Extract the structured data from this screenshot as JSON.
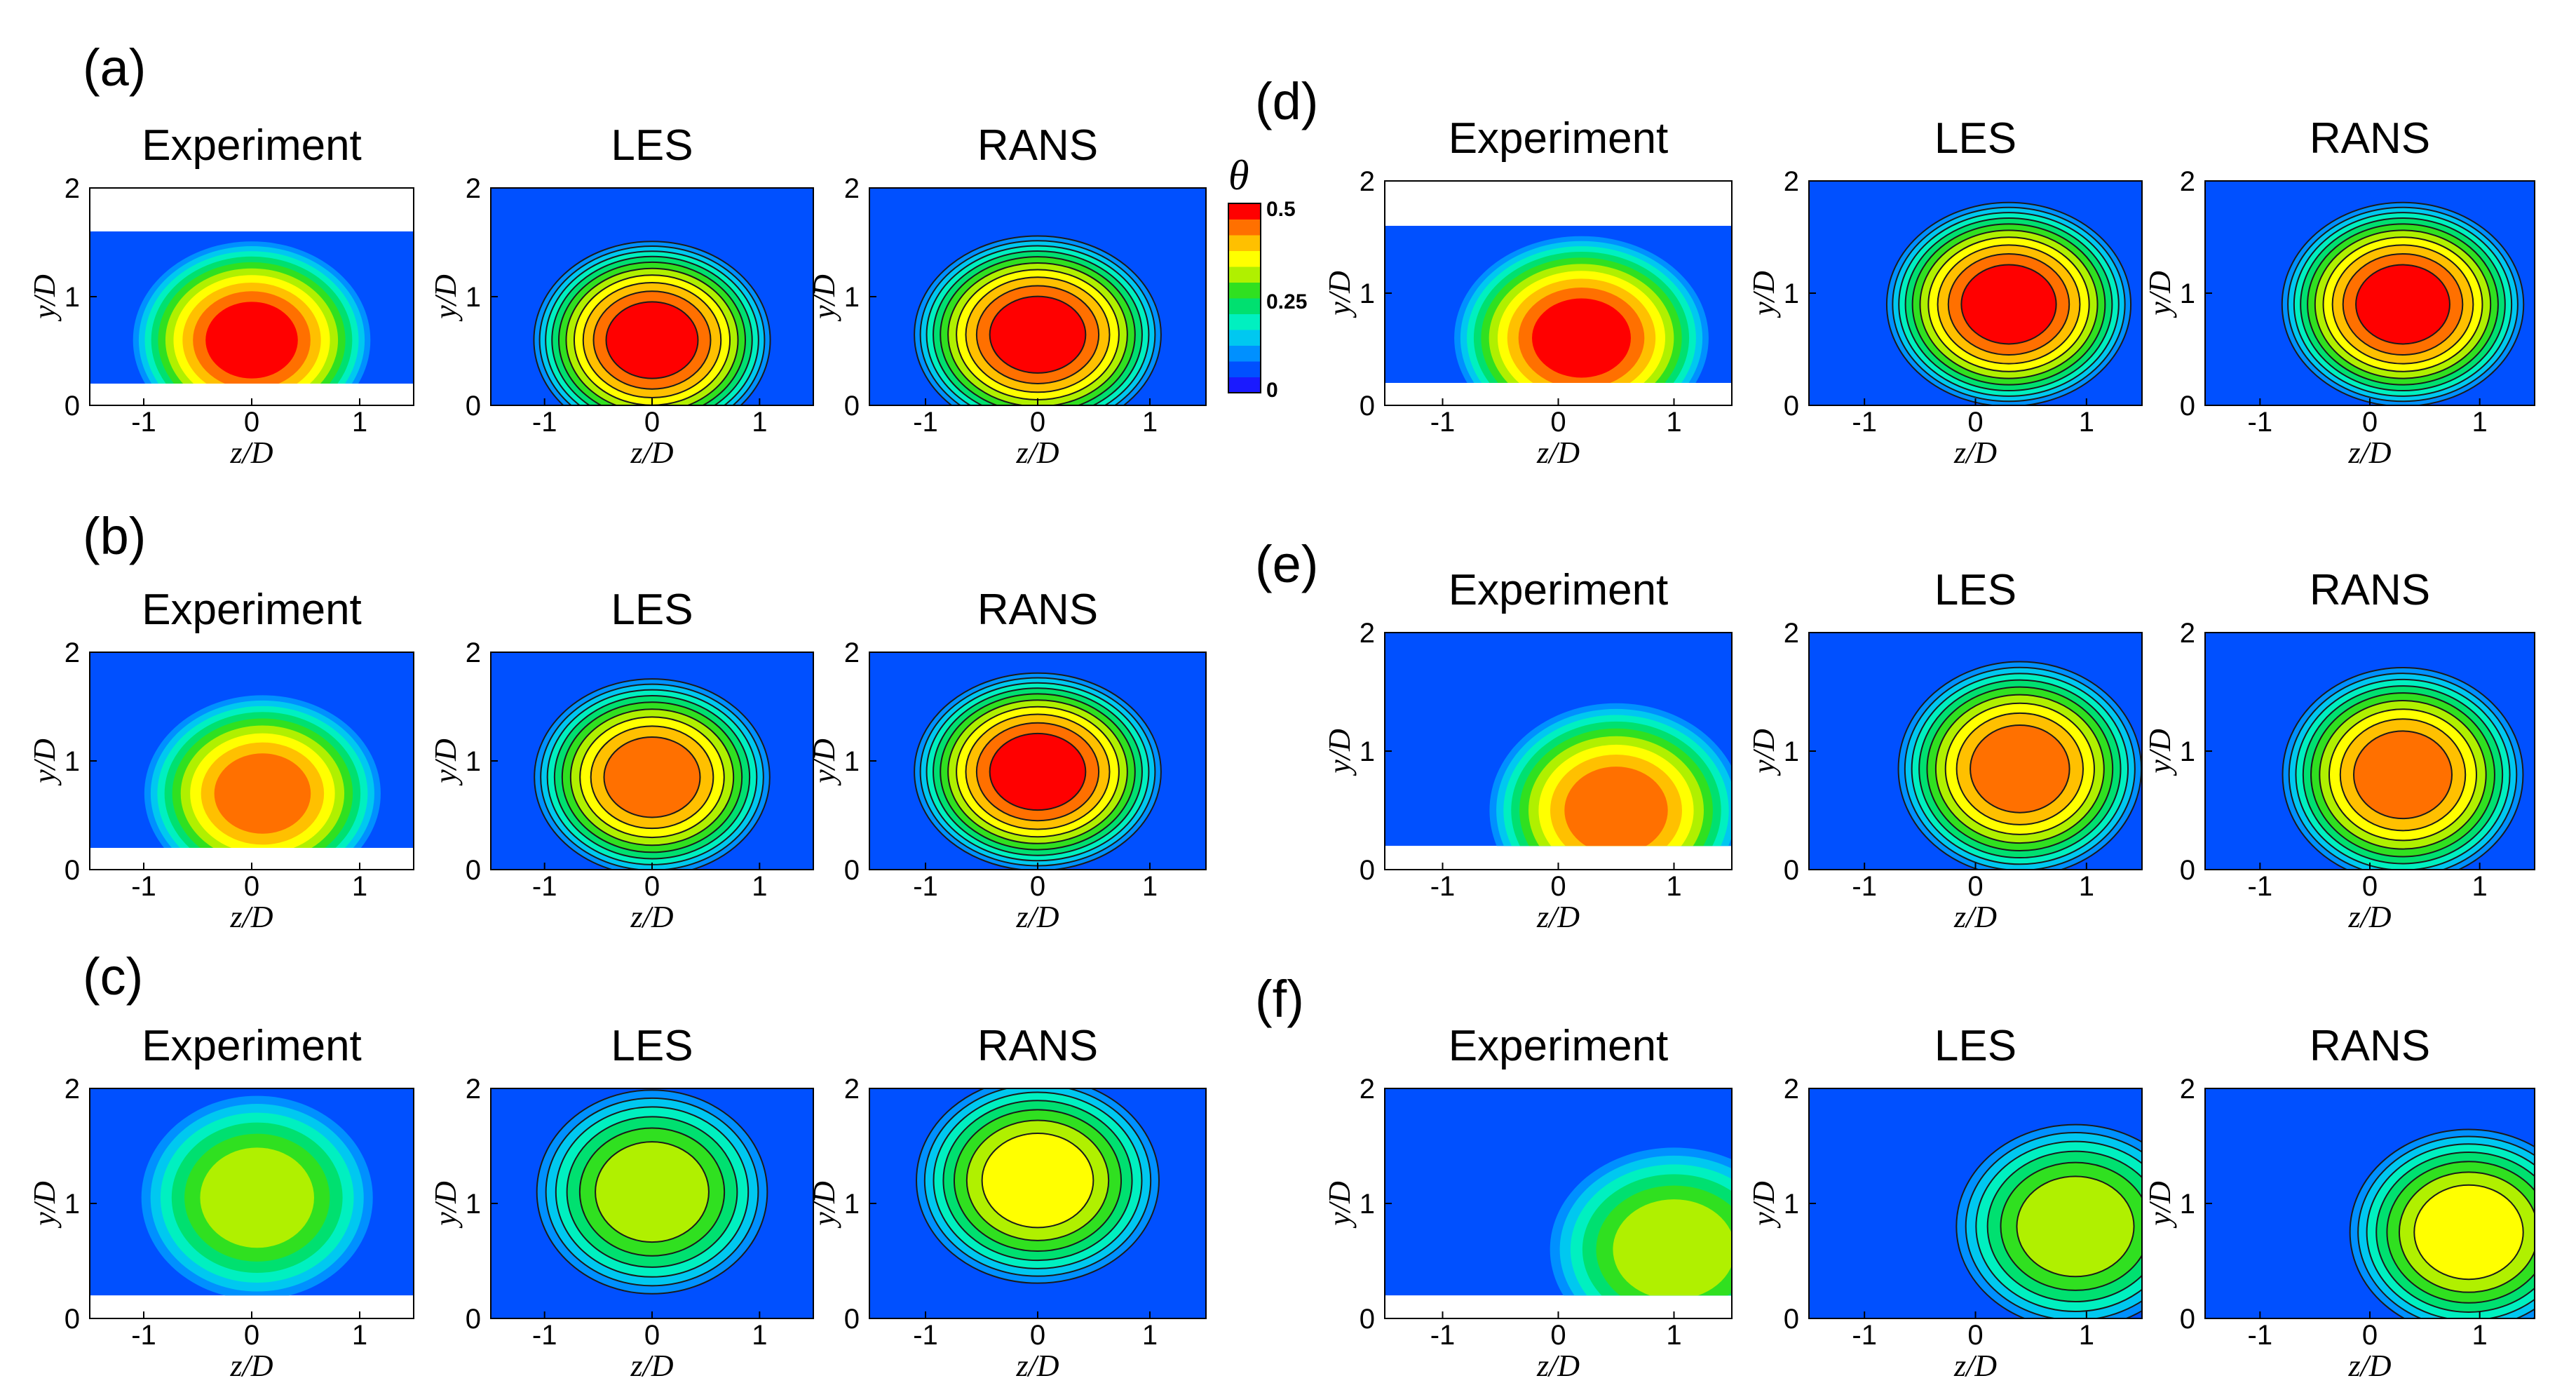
{
  "figure": {
    "panel_labels": [
      "(a)",
      "(b)",
      "(c)",
      "(d)",
      "(e)",
      "(f)"
    ],
    "methods": [
      "Experiment",
      "LES",
      "RANS"
    ],
    "xlabel": "z/D",
    "ylabel": "y/D",
    "x_ticks": [
      "-1",
      "0",
      "1"
    ],
    "y_ticks": [
      "0",
      "1",
      "2"
    ]
  },
  "colorbar": {
    "title": "θ",
    "tick_labels": [
      "0.5",
      "0.25",
      "0"
    ],
    "range": [
      0,
      0.5
    ],
    "colors": [
      "#1a1aff",
      "#0050ff",
      "#0090ff",
      "#00c8f0",
      "#00f0c0",
      "#00e070",
      "#30e020",
      "#b0f000",
      "#ffff00",
      "#ffc000",
      "#ff7000",
      "#ff0000"
    ]
  },
  "chart_data": [
    {
      "type": "heatmap",
      "panel": "(a)",
      "method": "Experiment",
      "xlim": [
        -1.5,
        1.5
      ],
      "ylim": [
        0,
        2
      ],
      "data_ymin": 0.2,
      "data_ymax": 1.6,
      "peak_theta": 0.5,
      "peak_z": 0.0,
      "peak_y": 0.6
    },
    {
      "type": "heatmap",
      "panel": "(a)",
      "method": "LES",
      "xlim": [
        -1.5,
        1.5
      ],
      "ylim": [
        0,
        2
      ],
      "data_ymin": 0.0,
      "data_ymax": 2.0,
      "peak_theta": 0.5,
      "peak_z": 0.0,
      "peak_y": 0.6
    },
    {
      "type": "heatmap",
      "panel": "(a)",
      "method": "RANS",
      "xlim": [
        -1.5,
        1.5
      ],
      "ylim": [
        0,
        2
      ],
      "data_ymin": 0.0,
      "data_ymax": 2.0,
      "peak_theta": 0.5,
      "peak_z": 0.0,
      "peak_y": 0.65
    },
    {
      "type": "heatmap",
      "panel": "(b)",
      "method": "Experiment",
      "xlim": [
        -1.5,
        1.5
      ],
      "ylim": [
        0,
        2
      ],
      "data_ymin": 0.2,
      "data_ymax": 2.0,
      "peak_theta": 0.45,
      "peak_z": 0.1,
      "peak_y": 0.7
    },
    {
      "type": "heatmap",
      "panel": "(b)",
      "method": "LES",
      "xlim": [
        -1.5,
        1.5
      ],
      "ylim": [
        0,
        2
      ],
      "data_ymin": 0.0,
      "data_ymax": 2.0,
      "peak_theta": 0.45,
      "peak_z": 0.0,
      "peak_y": 0.85
    },
    {
      "type": "heatmap",
      "panel": "(b)",
      "method": "RANS",
      "xlim": [
        -1.5,
        1.5
      ],
      "ylim": [
        0,
        2
      ],
      "data_ymin": 0.0,
      "data_ymax": 2.0,
      "peak_theta": 0.48,
      "peak_z": 0.0,
      "peak_y": 0.9
    },
    {
      "type": "heatmap",
      "panel": "(c)",
      "method": "Experiment",
      "xlim": [
        -1.5,
        1.5
      ],
      "ylim": [
        0,
        2
      ],
      "data_ymin": 0.2,
      "data_ymax": 2.0,
      "peak_theta": 0.33,
      "peak_z": 0.05,
      "peak_y": 1.05
    },
    {
      "type": "heatmap",
      "panel": "(c)",
      "method": "LES",
      "xlim": [
        -1.5,
        1.5
      ],
      "ylim": [
        0,
        2
      ],
      "data_ymin": 0.0,
      "data_ymax": 2.0,
      "peak_theta": 0.33,
      "peak_z": 0.0,
      "peak_y": 1.1
    },
    {
      "type": "heatmap",
      "panel": "(c)",
      "method": "RANS",
      "xlim": [
        -1.5,
        1.5
      ],
      "ylim": [
        0,
        2
      ],
      "data_ymin": 0.0,
      "data_ymax": 2.0,
      "peak_theta": 0.34,
      "peak_z": 0.0,
      "peak_y": 1.2
    },
    {
      "type": "heatmap",
      "panel": "(d)",
      "method": "Experiment",
      "xlim": [
        -1.5,
        1.5
      ],
      "ylim": [
        0,
        2
      ],
      "data_ymin": 0.2,
      "data_ymax": 1.6,
      "peak_theta": 0.5,
      "peak_z": 0.2,
      "peak_y": 0.6
    },
    {
      "type": "heatmap",
      "panel": "(d)",
      "method": "LES",
      "xlim": [
        -1.5,
        1.5
      ],
      "ylim": [
        0,
        2
      ],
      "data_ymin": 0.0,
      "data_ymax": 2.0,
      "peak_theta": 0.5,
      "peak_z": 0.3,
      "peak_y": 0.9
    },
    {
      "type": "heatmap",
      "panel": "(d)",
      "method": "RANS",
      "xlim": [
        -1.5,
        1.5
      ],
      "ylim": [
        0,
        2
      ],
      "data_ymin": 0.0,
      "data_ymax": 2.0,
      "peak_theta": 0.5,
      "peak_z": 0.3,
      "peak_y": 0.9
    },
    {
      "type": "heatmap",
      "panel": "(e)",
      "method": "Experiment",
      "xlim": [
        -1.5,
        1.5
      ],
      "ylim": [
        0,
        2
      ],
      "data_ymin": 0.2,
      "data_ymax": 2.0,
      "peak_theta": 0.42,
      "peak_z": 0.5,
      "peak_y": 0.5
    },
    {
      "type": "heatmap",
      "panel": "(e)",
      "method": "LES",
      "xlim": [
        -1.5,
        1.5
      ],
      "ylim": [
        0,
        2
      ],
      "data_ymin": 0.0,
      "data_ymax": 2.0,
      "peak_theta": 0.42,
      "peak_z": 0.4,
      "peak_y": 0.85
    },
    {
      "type": "heatmap",
      "panel": "(e)",
      "method": "RANS",
      "xlim": [
        -1.5,
        1.5
      ],
      "ylim": [
        0,
        2
      ],
      "data_ymin": 0.0,
      "data_ymax": 2.0,
      "peak_theta": 0.44,
      "peak_z": 0.3,
      "peak_y": 0.8
    },
    {
      "type": "heatmap",
      "panel": "(f)",
      "method": "Experiment",
      "xlim": [
        -1.5,
        1.5
      ],
      "ylim": [
        0,
        2
      ],
      "data_ymin": 0.2,
      "data_ymax": 2.0,
      "peak_theta": 0.33,
      "peak_z": 1.0,
      "peak_y": 0.6
    },
    {
      "type": "heatmap",
      "panel": "(f)",
      "method": "LES",
      "xlim": [
        -1.5,
        1.5
      ],
      "ylim": [
        0,
        2
      ],
      "data_ymin": 0.0,
      "data_ymax": 2.0,
      "peak_theta": 0.33,
      "peak_z": 0.9,
      "peak_y": 0.8
    },
    {
      "type": "heatmap",
      "panel": "(f)",
      "method": "RANS",
      "xlim": [
        -1.5,
        1.5
      ],
      "ylim": [
        0,
        2
      ],
      "data_ymin": 0.0,
      "data_ymax": 2.0,
      "peak_theta": 0.34,
      "peak_z": 0.9,
      "peak_y": 0.75
    }
  ]
}
